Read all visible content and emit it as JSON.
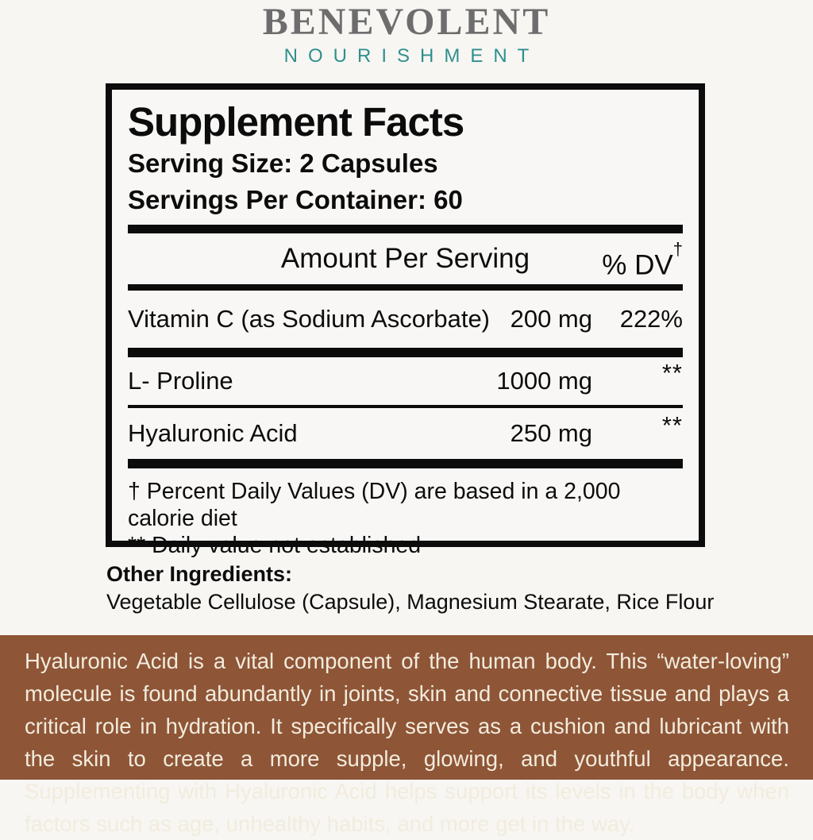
{
  "brand": {
    "name": "BENEVOLENT",
    "tagline": "NOURISHMENT",
    "name_color": "#6e6d6e",
    "tagline_color": "#2f908d"
  },
  "panel": {
    "title": "Supplement Facts",
    "serving_size": "Serving Size: 2 Capsules",
    "servings_per_container": "Servings Per Container: 60",
    "header": {
      "amount_label": "Amount Per Serving",
      "dv_label": "% DV",
      "dv_sup": "†"
    },
    "rows": [
      {
        "name": "Vitamin C (as Sodium Ascorbate)",
        "amount": "200 mg",
        "dv": "222%"
      },
      {
        "name": "L- Proline",
        "amount": "1000 mg",
        "dv": "**"
      },
      {
        "name": "Hyaluronic Acid",
        "amount": "250 mg",
        "dv": "**"
      }
    ],
    "footnotes": [
      "† Percent Daily Values (DV) are based in a 2,000 calorie diet",
      "** Daily value not established"
    ]
  },
  "other_ingredients": {
    "label": "Other Ingredients:",
    "value": "Vegetable Cellulose (Capsule), Magnesium Stearate, Rice Flour"
  },
  "description": {
    "text": "Hyaluronic Acid is a vital component of the human body. This “water-loving” molecule is found abundantly in joints, skin and connective tissue and plays a critical role in hydration. It specifically serves as a cushion and lubricant with the skin to create a more supple, glowing, and youthful appearance. Supplementing with Hyaluronic Acid helps support its levels in the body when factors such as age, unhealthy habits, and more get in the way.",
    "background_color": "#8e5537",
    "text_color": "#f2ecdd"
  }
}
